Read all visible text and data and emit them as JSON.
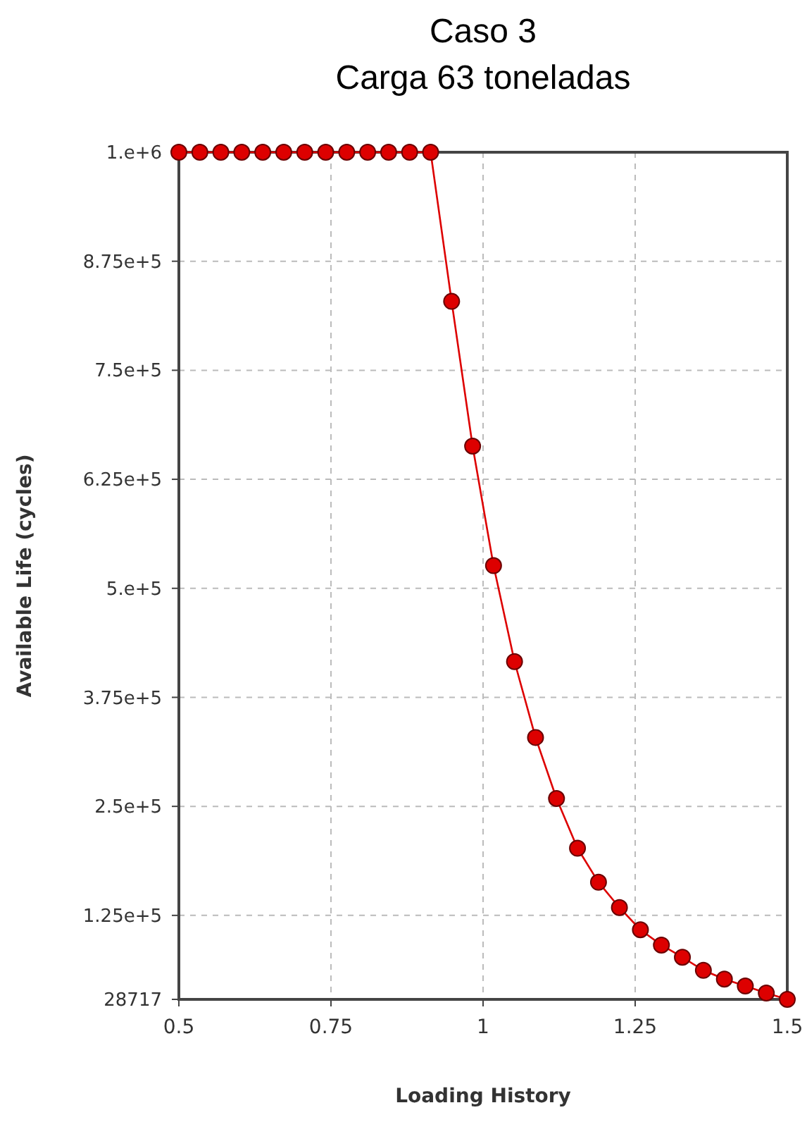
{
  "chart_data": {
    "type": "line",
    "title": "Caso 3",
    "subtitle": "Carga 63 toneladas",
    "xlabel": "Loading History",
    "ylabel": "Available Life (cycles)",
    "x": [
      0.5,
      0.5345,
      0.569,
      0.6034,
      0.6379,
      0.6724,
      0.7069,
      0.7414,
      0.7759,
      0.8103,
      0.8448,
      0.8793,
      0.9138,
      0.9483,
      0.9828,
      1.0172,
      1.0517,
      1.0862,
      1.1207,
      1.1552,
      1.1897,
      1.2241,
      1.2586,
      1.2931,
      1.3276,
      1.3621,
      1.3966,
      1.431,
      1.4655,
      1.5
    ],
    "series": [
      {
        "color": "#dd0000",
        "values": [
          1000000,
          1000000,
          1000000,
          1000000,
          1000000,
          1000000,
          1000000,
          1000000,
          1000000,
          1000000,
          1000000,
          1000000,
          1000000,
          829000,
          663000,
          526000,
          416000,
          329000,
          259000,
          202000,
          163000,
          134000,
          108500,
          91000,
          77000,
          62000,
          52000,
          44000,
          36000,
          28717
        ]
      }
    ],
    "xlim": [
      0.5,
      1.5
    ],
    "xticks": [
      0.5,
      0.75,
      1,
      1.25,
      1.5
    ],
    "ylim": [
      28717,
      1000000
    ],
    "yticks": [
      28717,
      {
        "value": 125000,
        "label": "1.25e+5"
      },
      {
        "value": 250000,
        "label": "2.5e+5"
      },
      {
        "value": 375000,
        "label": "3.75e+5"
      },
      {
        "value": 500000,
        "label": "5.e+5"
      },
      {
        "value": 625000,
        "label": "6.25e+5"
      },
      {
        "value": 750000,
        "label": "7.5e+5"
      },
      {
        "value": 875000,
        "label": "8.75e+5"
      },
      {
        "value": 1000000,
        "label": "1.e+6"
      }
    ],
    "grid": true,
    "marker": "circle",
    "line_style": "solid"
  }
}
